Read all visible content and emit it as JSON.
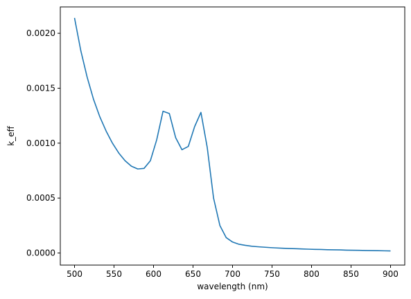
{
  "chart_data": {
    "type": "line",
    "title": "",
    "xlabel": "wavelength (nm)",
    "ylabel": "k_eff",
    "xlim": [
      482,
      918
    ],
    "ylim": [
      -0.00011,
      0.00224
    ],
    "xticks": [
      500,
      550,
      600,
      650,
      700,
      750,
      800,
      850,
      900
    ],
    "xtick_labels": [
      "500",
      "550",
      "600",
      "650",
      "700",
      "750",
      "800",
      "850",
      "900"
    ],
    "yticks": [
      0.0,
      0.0005,
      0.001,
      0.0015,
      0.002
    ],
    "ytick_labels": [
      "0.0000",
      "0.0005",
      "0.0010",
      "0.0015",
      "0.0020"
    ],
    "grid": false,
    "series": [
      {
        "color": "#1f77b4",
        "x": [
          500,
          508,
          516,
          524,
          532,
          540,
          548,
          556,
          564,
          572,
          580,
          588,
          596,
          604,
          612,
          620,
          628,
          636,
          644,
          652,
          660,
          668,
          676,
          684,
          692,
          700,
          708,
          716,
          724,
          732,
          740,
          748,
          756,
          764,
          772,
          780,
          788,
          796,
          804,
          812,
          820,
          828,
          836,
          844,
          852,
          860,
          868,
          876,
          884,
          892,
          900
        ],
        "y": [
          0.00214,
          0.00184,
          0.0016,
          0.0014,
          0.00124,
          0.00111,
          0.001,
          0.00091,
          0.00084,
          0.00079,
          0.000765,
          0.00077,
          0.00084,
          0.00103,
          0.00129,
          0.00127,
          0.00105,
          0.00094,
          0.00097,
          0.00115,
          0.00128,
          0.00096,
          0.0005,
          0.00025,
          0.00014,
          0.0001,
          8e-05,
          7e-05,
          6.2e-05,
          5.7e-05,
          5.3e-05,
          4.9e-05,
          4.6e-05,
          4.3e-05,
          4.1e-05,
          3.9e-05,
          3.7e-05,
          3.5e-05,
          3.3e-05,
          3.2e-05,
          3e-05,
          2.9e-05,
          2.8e-05,
          2.6e-05,
          2.5e-05,
          2.4e-05,
          2.3e-05,
          2.2e-05,
          2.1e-05,
          2e-05,
          1.9e-05
        ]
      }
    ]
  }
}
